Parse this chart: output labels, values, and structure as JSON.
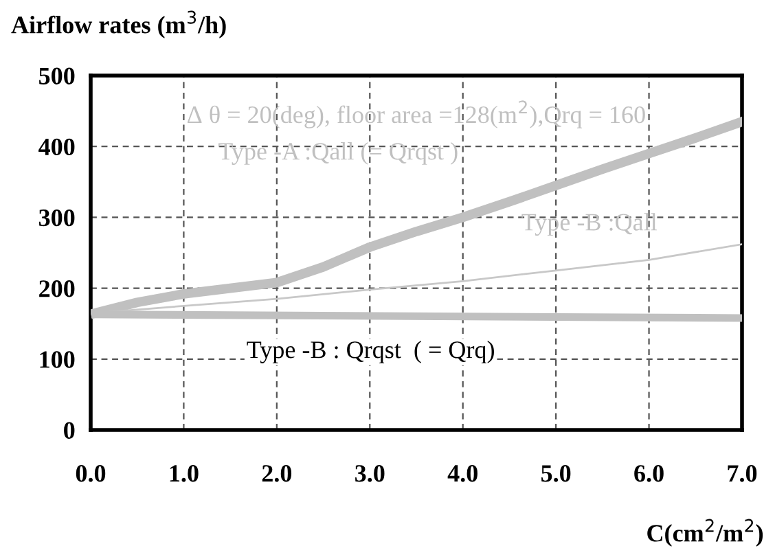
{
  "chart_data": {
    "type": "line",
    "ylabel": "Airflow rates (m$^{3}$/h)",
    "xlabel": "C(cm$^{2}$/m$^{2}$)",
    "xlim": [
      0,
      7
    ],
    "xticks": [
      {
        "value": 0,
        "label": "0.0"
      },
      {
        "value": 1,
        "label": "1.0"
      },
      {
        "value": 2,
        "label": "2.0"
      },
      {
        "value": 3,
        "label": "3.0"
      },
      {
        "value": 4,
        "label": "4.0"
      },
      {
        "value": 5,
        "label": "5.0"
      },
      {
        "value": 6,
        "label": "6.0"
      },
      {
        "value": 7,
        "label": "7.0"
      }
    ],
    "ylim": [
      0,
      500
    ],
    "yticks": [
      0,
      100,
      200,
      300,
      400,
      500
    ],
    "grid": true,
    "legend": false,
    "marker": "none",
    "line_style": "solid",
    "annotations": [
      "Δ θ = 20(deg), floor area =128(m$^{2}$),Qrq = 160",
      "Type -A :Qall (= Qrqst )",
      "Type -B :Qall",
      "Type -B : Qrqst  ( = Qrq)"
    ],
    "series": [
      {
        "color": "#c0c0c0",
        "x": [
          0.05,
          0.5,
          1.0,
          1.5,
          2.0,
          2.5,
          3.0,
          3.5,
          4.0,
          4.5,
          5.0,
          5.5,
          6.0,
          6.5,
          7.0
        ],
        "values": [
          165,
          180,
          192,
          200,
          208,
          230,
          258,
          280,
          300,
          322,
          345,
          368,
          390,
          412,
          435
        ]
      },
      {
        "color": "#c8c8c8",
        "x": [
          0.05,
          1,
          2,
          3,
          4,
          5,
          6,
          7
        ],
        "values": [
          165,
          175,
          185,
          198,
          210,
          225,
          240,
          262
        ]
      },
      {
        "color": "#c0c0c0",
        "x": [
          0.05,
          7
        ],
        "values": [
          163,
          158
        ]
      }
    ]
  }
}
